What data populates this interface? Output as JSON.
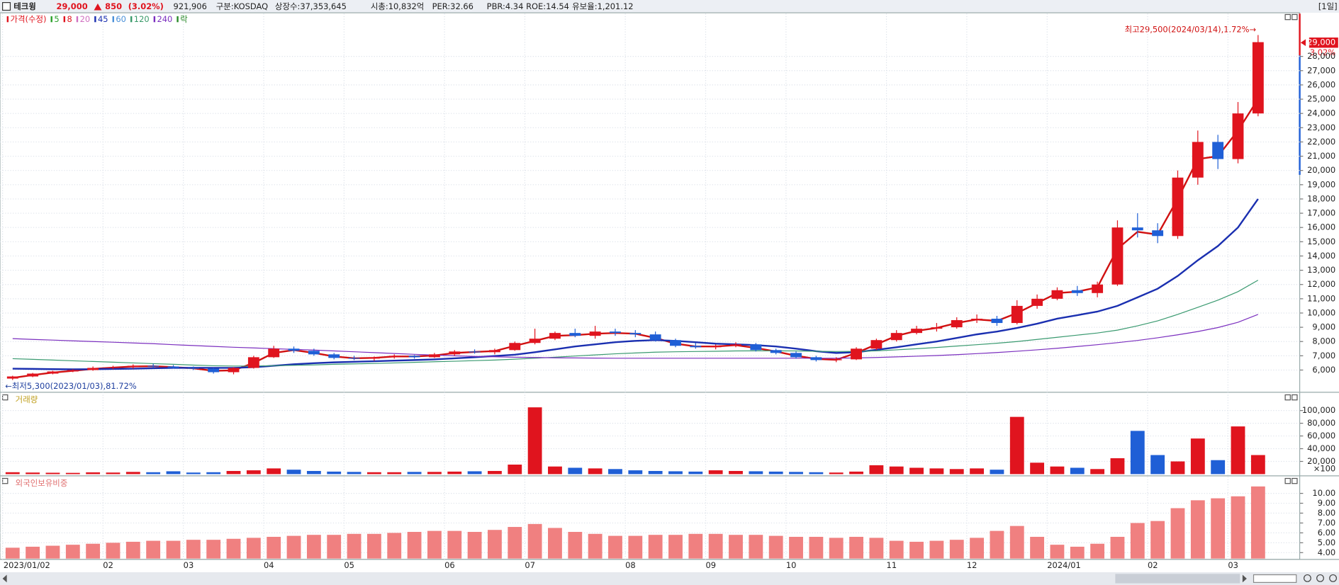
{
  "header": {
    "name": "테크윙",
    "price": "29,000",
    "change": "850",
    "change_pct": "(3.02%)",
    "info": [
      "921,906",
      "구분:KOSDAQ",
      "상장수:37,353,645",
      "시총:10,832억",
      "PER:32.66",
      "PBR:4.34",
      "ROE:14.54",
      "유보율:1,201.12"
    ],
    "period": "[1일]"
  },
  "chart_data": [
    {
      "type": "candlestick",
      "up_color": "#e0141e",
      "down_color": "#1f5fd6",
      "legend": [
        {
          "name": "가격(수정)",
          "color": "#e0141e"
        },
        {
          "name": "5",
          "color": "#2ca02c"
        },
        {
          "name": "8",
          "color": "#e0141e"
        },
        {
          "name": "20",
          "color": "#d070c0"
        },
        {
          "name": "45",
          "color": "#1a2fb0"
        },
        {
          "name": "60",
          "color": "#4a90d9"
        },
        {
          "name": "120",
          "color": "#3a9a6a"
        },
        {
          "name": "240",
          "color": "#7b2fbf"
        },
        {
          "name": "락",
          "color": "#2a8a2a"
        }
      ],
      "categories": [
        "2023/01/02",
        null,
        null,
        null,
        null,
        "02",
        null,
        null,
        null,
        "03",
        null,
        null,
        null,
        "04",
        null,
        null,
        null,
        "05",
        null,
        null,
        null,
        null,
        "06",
        null,
        null,
        null,
        "07",
        null,
        null,
        null,
        null,
        "08",
        null,
        null,
        null,
        "09",
        null,
        null,
        null,
        "10",
        null,
        null,
        null,
        null,
        "11",
        null,
        null,
        null,
        "12",
        null,
        null,
        null,
        "2024/01",
        null,
        null,
        null,
        null,
        "02",
        null,
        null,
        null,
        "03",
        null
      ],
      "open": [
        5400,
        5550,
        5750,
        5900,
        6000,
        6150,
        6200,
        6300,
        6250,
        6150,
        6100,
        5850,
        6150,
        6900,
        7500,
        7350,
        7100,
        6850,
        6800,
        6900,
        7000,
        6900,
        7100,
        7300,
        7250,
        7400,
        7900,
        8200,
        8600,
        8400,
        8700,
        8600,
        8500,
        8100,
        7700,
        7600,
        7700,
        7800,
        7400,
        7200,
        6900,
        6700,
        6750,
        7500,
        8100,
        8600,
        8900,
        9000,
        9500,
        9600,
        9300,
        10500,
        11000,
        11600,
        11400,
        12000,
        16000,
        15800,
        15400,
        19500,
        22000,
        20800,
        24000
      ],
      "high": [
        5600,
        5800,
        5950,
        6050,
        6250,
        6300,
        6400,
        6450,
        6350,
        6250,
        6150,
        6200,
        7000,
        7700,
        7650,
        7500,
        7200,
        7000,
        6950,
        7100,
        7050,
        7200,
        7400,
        7450,
        7500,
        8000,
        8900,
        8700,
        8900,
        9100,
        8900,
        8800,
        8700,
        8200,
        7900,
        7800,
        7950,
        7900,
        7500,
        7300,
        7000,
        6900,
        7600,
        8200,
        8800,
        9100,
        9300,
        9700,
        9900,
        9800,
        10900,
        11300,
        11800,
        11900,
        12200,
        16500,
        17000,
        16300,
        20000,
        22800,
        22500,
        24800,
        29500
      ],
      "low": [
        5300,
        5500,
        5700,
        5850,
        5950,
        6050,
        6100,
        6150,
        6100,
        6000,
        5750,
        5700,
        6100,
        6850,
        7200,
        7000,
        6750,
        6700,
        6650,
        6800,
        6800,
        6850,
        7000,
        7150,
        7100,
        7350,
        7800,
        8100,
        8300,
        8200,
        8400,
        8300,
        8000,
        7600,
        7500,
        7450,
        7600,
        7300,
        7100,
        6800,
        6600,
        6550,
        6700,
        7400,
        8000,
        8500,
        8700,
        8900,
        9300,
        9100,
        9200,
        10300,
        10900,
        11200,
        11100,
        11900,
        15300,
        14900,
        15200,
        19000,
        20100,
        20500,
        23800
      ],
      "close": [
        5550,
        5750,
        5900,
        6000,
        6150,
        6200,
        6300,
        6250,
        6150,
        6100,
        5850,
        6150,
        6900,
        7500,
        7350,
        7100,
        6850,
        6800,
        6900,
        7000,
        6900,
        7100,
        7300,
        7250,
        7400,
        7900,
        8200,
        8600,
        8400,
        8700,
        8600,
        8500,
        8100,
        7700,
        7600,
        7700,
        7800,
        7400,
        7200,
        6900,
        6700,
        6750,
        7500,
        8100,
        8600,
        8900,
        9000,
        9500,
        9600,
        9300,
        10500,
        11000,
        11600,
        11400,
        12000,
        16000,
        15800,
        15400,
        19500,
        22000,
        20800,
        24000,
        29000
      ],
      "lines": [
        {
          "color": "#d01010",
          "values": [
            5450,
            5650,
            5820,
            5950,
            6080,
            6170,
            6250,
            6270,
            6200,
            6120,
            5950,
            5980,
            6500,
            7200,
            7400,
            7200,
            6950,
            6830,
            6850,
            6950,
            6950,
            7020,
            7200,
            7270,
            7330,
            7700,
            8050,
            8400,
            8450,
            8550,
            8600,
            8550,
            8250,
            7850,
            7650,
            7650,
            7750,
            7550,
            7300,
            7000,
            6780,
            6720,
            7200,
            7800,
            8400,
            8750,
            8950,
            9300,
            9550,
            9450,
            10000,
            10700,
            11400,
            11500,
            11800,
            14500,
            15700,
            15500,
            18000,
            20800,
            21000,
            22800,
            25000
          ]
        },
        {
          "color": "#1a2fb0",
          "values": [
            6100,
            6080,
            6060,
            6050,
            6060,
            6080,
            6100,
            6130,
            6150,
            6160,
            6150,
            6150,
            6200,
            6300,
            6400,
            6480,
            6540,
            6580,
            6620,
            6660,
            6700,
            6750,
            6820,
            6900,
            6980,
            7080,
            7250,
            7450,
            7650,
            7800,
            7950,
            8050,
            8100,
            8050,
            7950,
            7850,
            7800,
            7750,
            7650,
            7500,
            7320,
            7200,
            7250,
            7420,
            7600,
            7800,
            8000,
            8250,
            8500,
            8700,
            8950,
            9250,
            9600,
            9850,
            10100,
            10500,
            11100,
            11700,
            12600,
            13700,
            14700,
            16000,
            18000
          ]
        },
        {
          "color": "#3a9a70",
          "values": [
            6800,
            6750,
            6700,
            6650,
            6600,
            6550,
            6500,
            6450,
            6400,
            6350,
            6300,
            6280,
            6280,
            6300,
            6330,
            6360,
            6400,
            6430,
            6460,
            6500,
            6540,
            6580,
            6620,
            6660,
            6700,
            6760,
            6830,
            6900,
            6980,
            7060,
            7140,
            7200,
            7250,
            7280,
            7300,
            7320,
            7340,
            7350,
            7350,
            7340,
            7320,
            7300,
            7310,
            7350,
            7420,
            7500,
            7580,
            7680,
            7780,
            7880,
            8000,
            8150,
            8300,
            8450,
            8600,
            8800,
            9100,
            9450,
            9900,
            10400,
            10900,
            11500,
            12300
          ]
        },
        {
          "color": "#7b2fbf",
          "values": [
            8200,
            8150,
            8100,
            8050,
            8000,
            7950,
            7900,
            7850,
            7780,
            7720,
            7660,
            7600,
            7550,
            7500,
            7450,
            7400,
            7340,
            7280,
            7220,
            7160,
            7100,
            7050,
            7000,
            6960,
            6930,
            6900,
            6880,
            6860,
            6850,
            6840,
            6830,
            6830,
            6830,
            6830,
            6830,
            6830,
            6830,
            6830,
            6830,
            6830,
            6830,
            6830,
            6850,
            6880,
            6920,
            6970,
            7020,
            7080,
            7150,
            7230,
            7320,
            7420,
            7530,
            7650,
            7780,
            7920,
            8080,
            8260,
            8470,
            8700,
            8980,
            9350,
            9900
          ]
        }
      ],
      "ylim": [
        4560,
        31000
      ],
      "yticks": [
        {
          "value": 6000,
          "label": "6,000"
        },
        {
          "value": 7000,
          "label": "7,000"
        },
        {
          "value": 8000,
          "label": "8,000"
        },
        {
          "value": 9000,
          "label": "9,000"
        },
        {
          "value": 10000,
          "label": "10,000"
        },
        {
          "value": 11000,
          "label": "11,000"
        },
        {
          "value": 12000,
          "label": "12,000"
        },
        {
          "value": 13000,
          "label": "13,000"
        },
        {
          "value": 14000,
          "label": "14,000"
        },
        {
          "value": 15000,
          "label": "15,000"
        },
        {
          "value": 16000,
          "label": "16,000"
        },
        {
          "value": 17000,
          "label": "17,000"
        },
        {
          "value": 18000,
          "label": "18,000"
        },
        {
          "value": 19000,
          "label": "19,000"
        },
        {
          "value": 20000,
          "label": "20,000"
        },
        {
          "value": 21000,
          "label": "21,000"
        },
        {
          "value": 22000,
          "label": "22,000"
        },
        {
          "value": 23000,
          "label": "23,000"
        },
        {
          "value": 24000,
          "label": "24,000"
        },
        {
          "value": 25000,
          "label": "25,000"
        },
        {
          "value": 26000,
          "label": "26,000"
        },
        {
          "value": 27000,
          "label": "27,000"
        },
        {
          "value": 28000,
          "label": "28,000"
        }
      ],
      "high_note": "최고29,500(2024/03/14),1.72%→",
      "low_note": "←최저5,300(2023/01/03),81.72%",
      "last_label": "29,000",
      "last_change": "3.02%",
      "grid": true
    },
    {
      "type": "bar",
      "title": "거래량",
      "unit_label": "×100",
      "up_color": "#e0141e",
      "down_color": "#1f5fd6",
      "values": [
        3000,
        2500,
        2200,
        2000,
        2800,
        2500,
        3500,
        3000,
        4500,
        2500,
        3000,
        5000,
        6000,
        9000,
        7000,
        5000,
        4000,
        3500,
        3000,
        3000,
        3500,
        3500,
        4000,
        4500,
        5000,
        15000,
        105000,
        12000,
        10000,
        9000,
        8000,
        6000,
        5000,
        4500,
        4000,
        6000,
        5000,
        4500,
        4000,
        3500,
        3000,
        2500,
        4000,
        14000,
        12000,
        10000,
        9000,
        8000,
        9000,
        7000,
        90000,
        18000,
        12000,
        10000,
        8000,
        25000,
        68000,
        30000,
        20000,
        56000,
        22000,
        75000,
        30000
      ],
      "ylim": [
        0,
        126000
      ],
      "yticks": [
        {
          "value": 20000,
          "label": "20,000"
        },
        {
          "value": 40000,
          "label": "40,000"
        },
        {
          "value": 60000,
          "label": "60,000"
        },
        {
          "value": 80000,
          "label": "80,000"
        },
        {
          "value": 100000,
          "label": "100,000"
        }
      ],
      "grid": true
    },
    {
      "type": "bar",
      "title": "외국인보유비중",
      "color": "#f08080",
      "values": [
        4.5,
        4.6,
        4.7,
        4.8,
        4.9,
        5.0,
        5.1,
        5.2,
        5.2,
        5.3,
        5.3,
        5.4,
        5.5,
        5.6,
        5.7,
        5.8,
        5.8,
        5.9,
        5.9,
        6.0,
        6.1,
        6.2,
        6.2,
        6.1,
        6.3,
        6.6,
        6.9,
        6.5,
        6.1,
        5.9,
        5.7,
        5.7,
        5.8,
        5.8,
        5.9,
        5.9,
        5.8,
        5.8,
        5.7,
        5.6,
        5.6,
        5.5,
        5.6,
        5.5,
        5.2,
        5.1,
        5.2,
        5.3,
        5.5,
        6.2,
        6.7,
        5.6,
        4.8,
        4.6,
        4.9,
        5.6,
        7.0,
        7.2,
        8.5,
        9.3,
        9.5,
        9.7,
        10.7
      ],
      "ylim": [
        3.4,
        11.6
      ],
      "yticks": [
        {
          "value": 4,
          "label": "4.00"
        },
        {
          "value": 5,
          "label": "5.00"
        },
        {
          "value": 6,
          "label": "6.00"
        },
        {
          "value": 7,
          "label": "7.00"
        },
        {
          "value": 8,
          "label": "8.00"
        },
        {
          "value": 9,
          "label": "9.00"
        },
        {
          "value": 10,
          "label": "10.00"
        }
      ],
      "grid": true
    }
  ]
}
